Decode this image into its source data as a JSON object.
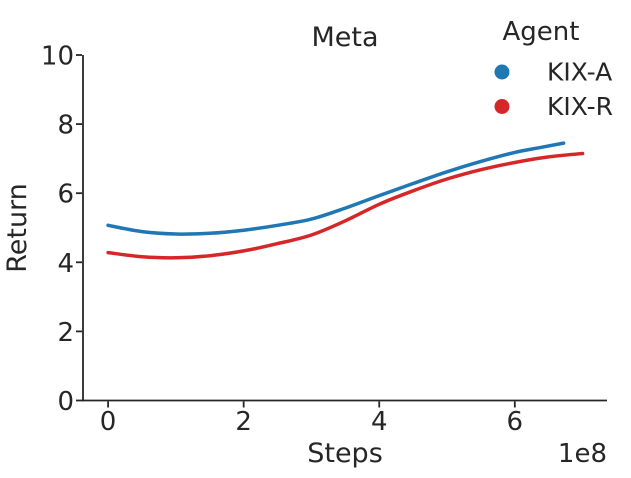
{
  "figure": {
    "background": "#ffffff",
    "text_color": "#262626",
    "spine_color": "#262626"
  },
  "chart_data": {
    "type": "line",
    "title": "Meta",
    "xlabel": "Steps",
    "ylabel": "Return",
    "x_offset_text": "1e8",
    "x_unit_multiplier": 100000000,
    "xlim": [
      -0.37,
      7.36
    ],
    "ylim": [
      0,
      10
    ],
    "xticks": [
      0,
      2,
      4,
      6
    ],
    "yticks": [
      0,
      2,
      4,
      6,
      8,
      10
    ],
    "grid": false,
    "legend": {
      "title": "Agent",
      "position": "upper-right",
      "entries": [
        "KIX-A",
        "KIX-R"
      ]
    },
    "series": [
      {
        "name": "KIX-A",
        "color": "#1f77b4",
        "x": [
          0,
          0.5,
          1.0,
          1.5,
          2.0,
          2.5,
          3.0,
          3.5,
          4.0,
          4.5,
          5.0,
          5.5,
          6.0,
          6.4,
          6.72
        ],
        "y": [
          5.07,
          4.89,
          4.82,
          4.84,
          4.93,
          5.07,
          5.25,
          5.57,
          5.93,
          6.28,
          6.62,
          6.92,
          7.18,
          7.33,
          7.45
        ]
      },
      {
        "name": "KIX-R",
        "color": "#d62728",
        "x": [
          0,
          0.5,
          1.0,
          1.5,
          2.0,
          2.5,
          3.0,
          3.5,
          4.0,
          4.5,
          5.0,
          5.5,
          6.0,
          6.5,
          7.0
        ],
        "y": [
          4.28,
          4.16,
          4.13,
          4.19,
          4.33,
          4.54,
          4.79,
          5.2,
          5.68,
          6.07,
          6.41,
          6.68,
          6.89,
          7.05,
          7.15
        ]
      }
    ]
  }
}
